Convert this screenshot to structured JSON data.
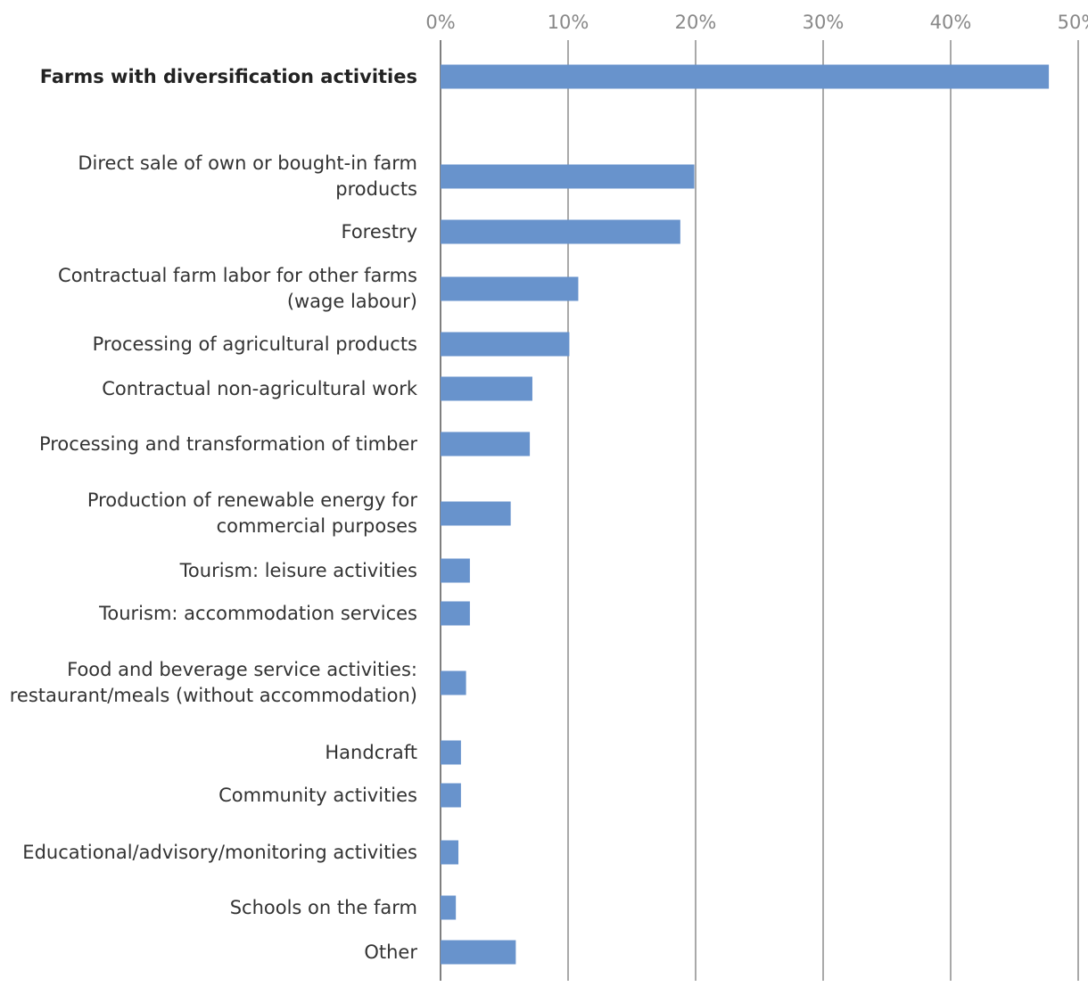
{
  "chart_data": {
    "type": "bar",
    "orientation": "horizontal",
    "x_ticks": [
      "0%",
      "10%",
      "20%",
      "30%",
      "40%",
      "50%"
    ],
    "xlim": [
      0,
      50
    ],
    "categories": [
      "Farms with diversification activities",
      "Direct sale of own or bought-in farm products",
      "Forestry",
      "Contractual farm labor for other farms (wage labour)",
      "Processing of agricultural products",
      "Contractual non-agricultural work",
      "Processing and transformation of timber",
      "Production of renewable energy for commercial purposes",
      "Tourism: leisure activities",
      "Tourism: accommodation services",
      "Food and beverage service activities: restaurant/meals (without accommodation)",
      "Handcraft",
      "Community activities",
      "Educational/advisory/monitoring activities",
      "Schools on the farm",
      "Other"
    ],
    "values": [
      47.7,
      19.9,
      18.8,
      10.8,
      10.1,
      7.2,
      7.0,
      5.5,
      2.3,
      2.3,
      2.0,
      1.6,
      1.6,
      1.4,
      1.2,
      5.9
    ],
    "highlight_first_category": true,
    "bar_color": "#6893CC",
    "grid": true
  }
}
